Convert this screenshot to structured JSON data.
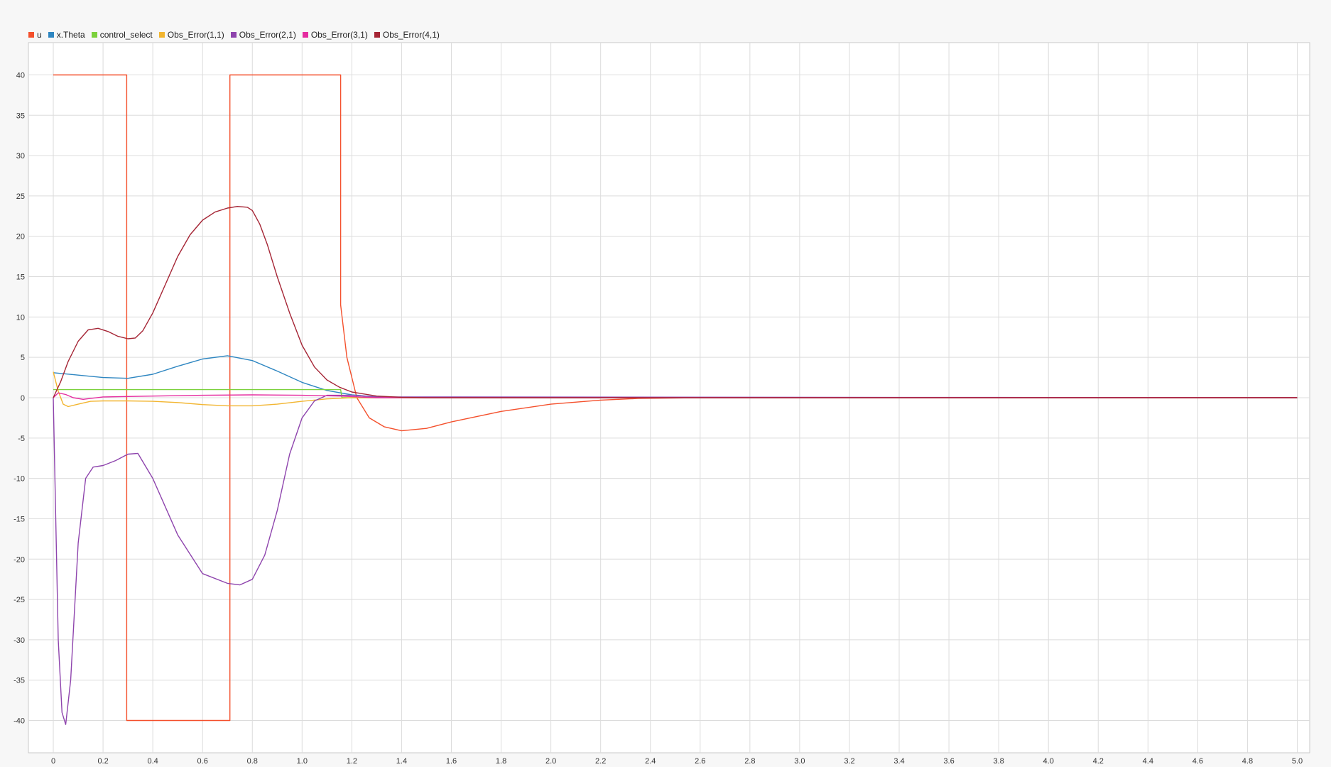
{
  "chart_data": {
    "type": "line",
    "title": "",
    "xlabel": "",
    "ylabel": "",
    "xlim": [
      -0.1,
      5.05
    ],
    "ylim": [
      -44,
      44
    ],
    "grid": true,
    "legend_position": "top-left",
    "x_ticks": [
      "0",
      "0.2",
      "0.4",
      "0.6",
      "0.8",
      "1.0",
      "1.2",
      "1.4",
      "1.6",
      "1.8",
      "2.0",
      "2.2",
      "2.4",
      "2.6",
      "2.8",
      "3.0",
      "3.2",
      "3.4",
      "3.6",
      "3.8",
      "4.0",
      "4.2",
      "4.4",
      "4.6",
      "4.8",
      "5.0"
    ],
    "y_ticks": [
      "40",
      "35",
      "30",
      "25",
      "20",
      "15",
      "10",
      "5",
      "0",
      "-5",
      "-10",
      "-15",
      "-20",
      "-25",
      "-30",
      "-35",
      "-40"
    ],
    "series": [
      {
        "name": "u",
        "color": "#f4502c",
        "x": [
          0,
          0.295,
          0.295,
          0.71,
          0.71,
          1.155,
          1.155,
          1.18,
          1.22,
          1.27,
          1.33,
          1.4,
          1.5,
          1.6,
          1.8,
          2.0,
          2.2,
          2.35,
          2.6,
          3.0,
          5.0
        ],
        "y": [
          40,
          40,
          -40,
          -40,
          40,
          40,
          11.5,
          5,
          0,
          -2.5,
          -3.6,
          -4.1,
          -3.8,
          -3,
          -1.7,
          -0.8,
          -0.3,
          -0.1,
          0,
          0,
          0
        ]
      },
      {
        "name": "x.Theta",
        "color": "#2e86c1",
        "x": [
          0,
          0.1,
          0.2,
          0.3,
          0.4,
          0.5,
          0.6,
          0.7,
          0.8,
          0.9,
          1.0,
          1.1,
          1.2,
          1.3,
          1.5,
          2.0,
          5.0
        ],
        "y": [
          3.1,
          2.8,
          2.5,
          2.4,
          2.9,
          3.9,
          4.8,
          5.2,
          4.6,
          3.3,
          1.9,
          0.9,
          0.35,
          0.1,
          0,
          0,
          0
        ]
      },
      {
        "name": "control_select",
        "color": "#7cd13c",
        "x": [
          0,
          0.03,
          1.155,
          1.16,
          5.0
        ],
        "y": [
          1,
          1,
          1,
          0,
          0
        ]
      },
      {
        "name": "Obs_Error(1,1)",
        "color": "#f2b530",
        "x": [
          0,
          0.02,
          0.04,
          0.06,
          0.1,
          0.15,
          0.2,
          0.3,
          0.4,
          0.5,
          0.6,
          0.7,
          0.8,
          0.9,
          1.0,
          1.1,
          1.2,
          1.3,
          5.0
        ],
        "y": [
          3.2,
          0.8,
          -0.8,
          -1.1,
          -0.8,
          -0.45,
          -0.4,
          -0.4,
          -0.45,
          -0.6,
          -0.85,
          -1.0,
          -1.0,
          -0.8,
          -0.45,
          -0.15,
          0,
          0,
          0
        ]
      },
      {
        "name": "Obs_Error(2,1)",
        "color": "#8e44ad",
        "x": [
          0,
          0.01,
          0.02,
          0.035,
          0.05,
          0.07,
          0.1,
          0.13,
          0.16,
          0.2,
          0.25,
          0.3,
          0.34,
          0.4,
          0.5,
          0.6,
          0.7,
          0.75,
          0.8,
          0.85,
          0.9,
          0.95,
          1.0,
          1.05,
          1.1,
          1.2,
          1.3,
          5.0
        ],
        "y": [
          0,
          -15,
          -30,
          -39,
          -40.5,
          -35,
          -18,
          -10,
          -8.6,
          -8.4,
          -7.8,
          -7.0,
          -6.9,
          -10,
          -17,
          -21.8,
          -23,
          -23.2,
          -22.5,
          -19.5,
          -14,
          -7,
          -2.5,
          -0.4,
          0.3,
          0.3,
          0.1,
          0
        ]
      },
      {
        "name": "Obs_Error(3,1)",
        "color": "#e52ca0",
        "x": [
          0,
          0.02,
          0.05,
          0.08,
          0.12,
          0.2,
          0.4,
          0.6,
          0.8,
          1.0,
          1.15,
          1.3,
          5.0
        ],
        "y": [
          0,
          0.6,
          0.4,
          0,
          -0.2,
          0.1,
          0.2,
          0.3,
          0.35,
          0.3,
          0.2,
          0,
          0
        ]
      },
      {
        "name": "Obs_Error(4,1)",
        "color": "#a52535",
        "x": [
          0,
          0.03,
          0.06,
          0.1,
          0.14,
          0.18,
          0.22,
          0.26,
          0.3,
          0.33,
          0.36,
          0.4,
          0.45,
          0.5,
          0.55,
          0.6,
          0.65,
          0.7,
          0.74,
          0.78,
          0.8,
          0.83,
          0.86,
          0.9,
          0.95,
          1.0,
          1.05,
          1.1,
          1.15,
          1.2,
          1.3,
          1.4,
          1.5,
          5.0
        ],
        "y": [
          0,
          2,
          4.5,
          7,
          8.4,
          8.6,
          8.2,
          7.6,
          7.3,
          7.4,
          8.3,
          10.5,
          14,
          17.5,
          20.2,
          22,
          23,
          23.5,
          23.7,
          23.6,
          23.2,
          21.5,
          19,
          15,
          10.5,
          6.5,
          3.8,
          2.2,
          1.3,
          0.7,
          0.2,
          0.05,
          0,
          0
        ]
      }
    ]
  }
}
